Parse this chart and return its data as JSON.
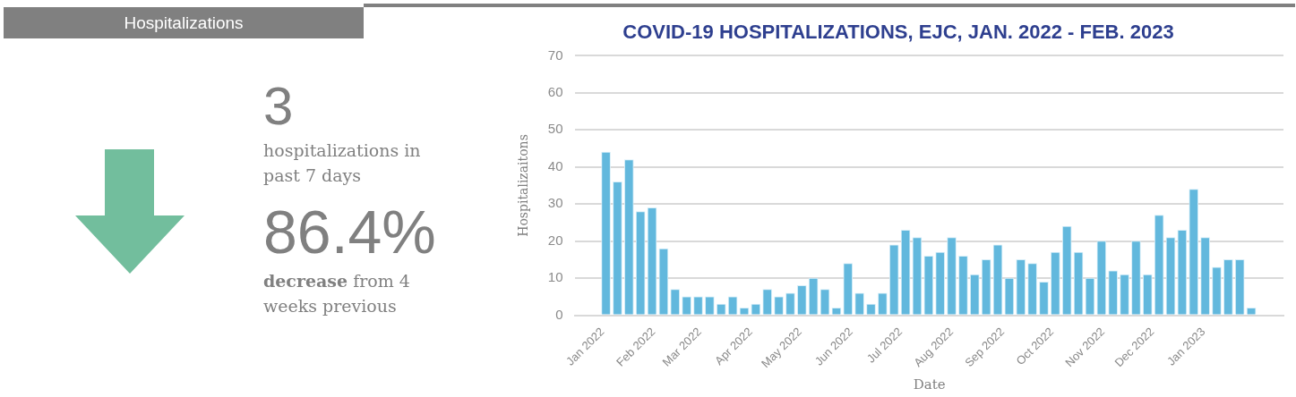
{
  "chart_data": [
    {
      "type": "other",
      "title": "Hospitalizations",
      "annotations": [
        "3",
        "hospitalizations in past 7 days",
        "86.4%",
        "decrease",
        "from 4 weeks previous"
      ]
    },
    {
      "type": "bar",
      "title": "COVID-19 HOSPITALIZATIONS, EJC, JAN. 2022 - FEB. 2023",
      "xlabel": "Date",
      "ylabel": "Hospitalizaitons",
      "color": "#62b8dd",
      "grid": "y",
      "x": [
        "2022-01-03",
        "2022-01-10",
        "2022-01-17",
        "2022-01-24",
        "2022-01-31",
        "2022-02-07",
        "2022-02-14",
        "2022-02-21",
        "2022-02-28",
        "2022-03-07",
        "2022-03-14",
        "2022-03-21",
        "2022-03-28",
        "2022-04-04",
        "2022-04-11",
        "2022-04-18",
        "2022-04-25",
        "2022-05-02",
        "2022-05-09",
        "2022-05-16",
        "2022-05-23",
        "2022-05-30",
        "2022-06-06",
        "2022-06-13",
        "2022-06-20",
        "2022-06-27",
        "2022-07-04",
        "2022-07-11",
        "2022-07-18",
        "2022-07-25",
        "2022-08-01",
        "2022-08-08",
        "2022-08-15",
        "2022-08-22",
        "2022-08-29",
        "2022-09-05",
        "2022-09-12",
        "2022-09-19",
        "2022-09-26",
        "2022-10-03",
        "2022-10-10",
        "2022-10-17",
        "2022-10-24",
        "2022-10-31",
        "2022-11-07",
        "2022-11-14",
        "2022-11-21",
        "2022-11-28",
        "2022-12-05",
        "2022-12-12",
        "2022-12-19",
        "2022-12-26",
        "2023-01-02",
        "2023-01-09",
        "2023-01-16",
        "2023-01-23",
        "2023-01-30"
      ],
      "values": [
        44,
        36,
        42,
        28,
        29,
        18,
        7,
        5,
        5,
        5,
        3,
        5,
        2,
        3,
        7,
        5,
        6,
        8,
        10,
        7,
        2,
        14,
        6,
        3,
        6,
        19,
        23,
        21,
        16,
        17,
        21,
        16,
        11,
        15,
        19,
        10,
        15,
        14,
        9,
        17,
        24,
        17,
        10,
        20,
        12,
        11,
        20,
        11,
        27,
        21,
        23,
        34,
        21,
        13,
        15,
        15,
        2
      ],
      "xlim": [
        "2022-01-01",
        "2023-02-02"
      ],
      "xticks": [
        {
          "value": "2022-01-01",
          "label": "Jan 2022"
        },
        {
          "value": "2022-02-01",
          "label": "Feb 2022"
        },
        {
          "value": "2022-03-01",
          "label": "Mar 2022"
        },
        {
          "value": "2022-04-01",
          "label": "Apr 2022"
        },
        {
          "value": "2022-05-01",
          "label": "May 2022"
        },
        {
          "value": "2022-06-01",
          "label": "Jun 2022"
        },
        {
          "value": "2022-07-01",
          "label": "Jul 2022"
        },
        {
          "value": "2022-08-01",
          "label": "Aug 2022"
        },
        {
          "value": "2022-09-01",
          "label": "Sep 2022"
        },
        {
          "value": "2022-10-01",
          "label": "Oct 2022"
        },
        {
          "value": "2022-11-01",
          "label": "Nov 2022"
        },
        {
          "value": "2022-12-01",
          "label": "Dec 2022"
        },
        {
          "value": "2023-01-01",
          "label": "Jan 2023"
        }
      ],
      "ylim": [
        0,
        70
      ],
      "yticks": [
        0,
        10,
        20,
        30,
        40,
        50,
        60,
        70
      ]
    }
  ]
}
